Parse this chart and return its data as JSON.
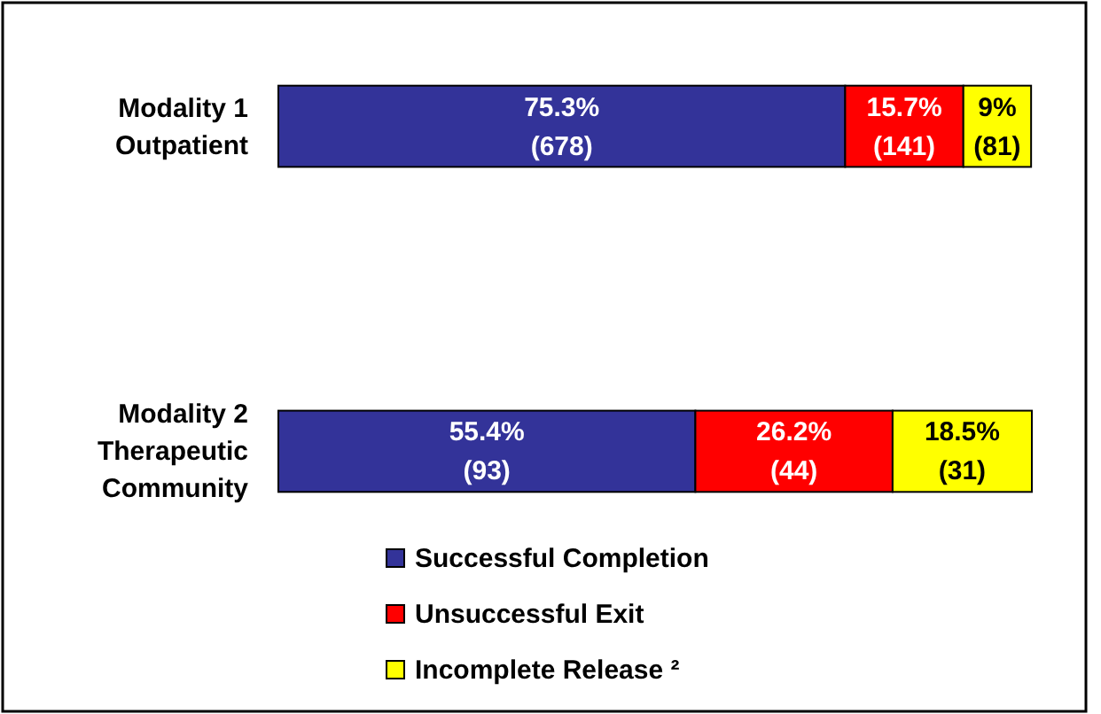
{
  "chart_data": {
    "type": "bar",
    "orientation": "horizontal",
    "stacked": true,
    "categories": [
      "Modality 1 Outpatient",
      "Modality 2 Therapeutic Community"
    ],
    "xlim": [
      0,
      100.1
    ],
    "tick_labels": "y",
    "legend": "bottom",
    "series": [
      {
        "name": "Successful Completion",
        "color": "#333399",
        "values": [
          75.3,
          55.4
        ],
        "value_labels": [
          "75.3%\n(678)",
          "55.4%\n(93)"
        ]
      },
      {
        "name": "Unsuccessful Exit",
        "color": "#ff0000",
        "values": [
          15.7,
          26.2
        ],
        "value_labels": [
          "15.7%\n(141)",
          "26.2%\n(44)"
        ]
      },
      {
        "name": "Incomplete Release ²",
        "color": "#ffff00",
        "values": [
          9,
          18.5
        ],
        "value_labels": [
          "9%\n(81)",
          "18.5%\n(31)"
        ]
      }
    ]
  }
}
